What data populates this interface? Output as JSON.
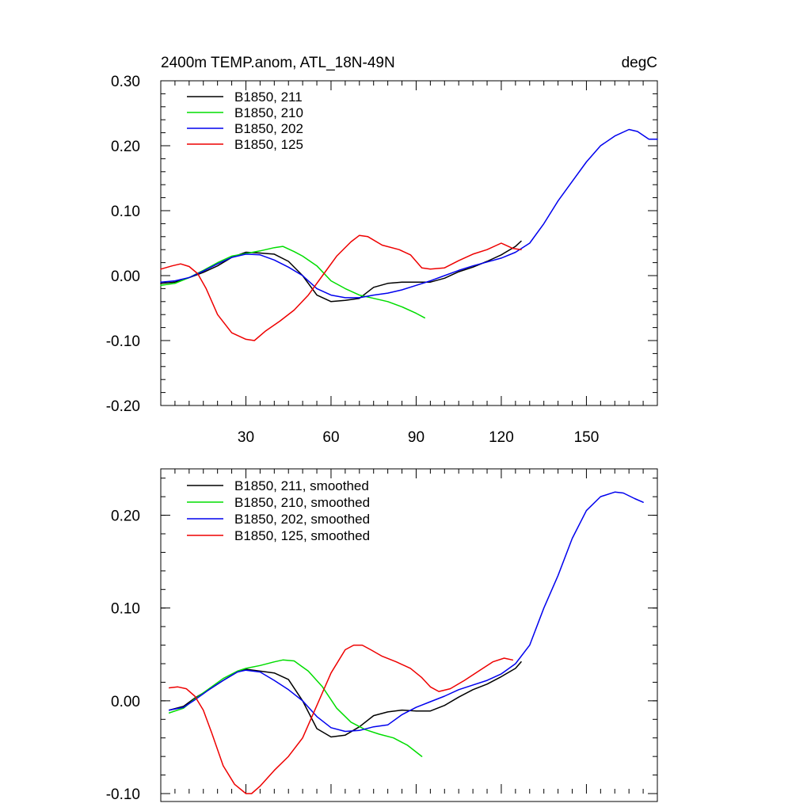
{
  "chart_data": [
    {
      "type": "line",
      "title_left": "2400m TEMP.anom, ATL_18N-49N",
      "title_right": "degC",
      "xlabel": "",
      "ylabel": "",
      "xlim": [
        0,
        175
      ],
      "ylim": [
        -0.2,
        0.3
      ],
      "x_ticks": [
        30,
        60,
        90,
        120,
        150
      ],
      "x_tick_labels": [
        "30",
        "60",
        "90",
        "120",
        "150"
      ],
      "y_ticks": [
        -0.2,
        -0.1,
        0.0,
        0.1,
        0.2,
        0.3
      ],
      "y_tick_labels": [
        "-0.20",
        "-0.10",
        "0.00",
        "0.10",
        "0.20",
        "0.30"
      ],
      "legend_position": "top-left",
      "series": [
        {
          "name": "B1850, 211",
          "color": "#000000",
          "x": [
            0,
            5,
            10,
            15,
            20,
            25,
            30,
            34,
            40,
            45,
            50,
            55,
            60,
            65,
            70,
            75,
            80,
            85,
            90,
            95,
            100,
            105,
            110,
            115,
            120,
            125,
            127
          ],
          "y": [
            -0.012,
            -0.01,
            -0.003,
            0.005,
            0.015,
            0.028,
            0.036,
            0.035,
            0.033,
            0.022,
            0.0,
            -0.03,
            -0.04,
            -0.038,
            -0.035,
            -0.018,
            -0.012,
            -0.01,
            -0.01,
            -0.01,
            -0.004,
            0.006,
            0.013,
            0.022,
            0.032,
            0.045,
            0.053
          ]
        },
        {
          "name": "B1850, 210",
          "color": "#00dd00",
          "x": [
            0,
            5,
            10,
            15,
            20,
            25,
            30,
            35,
            40,
            43,
            47,
            50,
            55,
            60,
            65,
            70,
            75,
            80,
            85,
            90,
            93
          ],
          "y": [
            -0.015,
            -0.012,
            -0.003,
            0.008,
            0.02,
            0.03,
            0.034,
            0.038,
            0.043,
            0.045,
            0.037,
            0.03,
            0.015,
            -0.008,
            -0.02,
            -0.03,
            -0.035,
            -0.04,
            -0.048,
            -0.058,
            -0.065
          ]
        },
        {
          "name": "B1850, 202",
          "color": "#0000ee",
          "x": [
            0,
            5,
            10,
            15,
            20,
            25,
            30,
            35,
            40,
            45,
            50,
            55,
            60,
            65,
            70,
            75,
            80,
            85,
            90,
            95,
            100,
            105,
            110,
            115,
            120,
            125,
            130,
            135,
            140,
            145,
            150,
            155,
            160,
            165,
            168,
            172,
            175
          ],
          "y": [
            -0.01,
            -0.008,
            -0.003,
            0.007,
            0.018,
            0.028,
            0.033,
            0.032,
            0.024,
            0.013,
            0.0,
            -0.02,
            -0.03,
            -0.034,
            -0.034,
            -0.03,
            -0.027,
            -0.022,
            -0.015,
            -0.008,
            0.0,
            0.008,
            0.015,
            0.021,
            0.027,
            0.036,
            0.05,
            0.08,
            0.115,
            0.145,
            0.175,
            0.2,
            0.215,
            0.225,
            0.222,
            0.21,
            0.21
          ]
        },
        {
          "name": "B1850, 125",
          "color": "#ee0000",
          "x": [
            0,
            4,
            7,
            10,
            13,
            16,
            20,
            25,
            30,
            33,
            37,
            42,
            47,
            52,
            57,
            62,
            67,
            70,
            73,
            78,
            84,
            88,
            92,
            95,
            100,
            105,
            110,
            115,
            120,
            124,
            127
          ],
          "y": [
            0.01,
            0.015,
            0.018,
            0.014,
            0.003,
            -0.02,
            -0.06,
            -0.088,
            -0.098,
            -0.1,
            -0.085,
            -0.07,
            -0.053,
            -0.03,
            0.0,
            0.03,
            0.052,
            0.062,
            0.06,
            0.047,
            0.04,
            0.032,
            0.012,
            0.01,
            0.012,
            0.023,
            0.033,
            0.04,
            0.05,
            0.042,
            0.04
          ]
        }
      ]
    },
    {
      "type": "line",
      "title_left": "",
      "title_right": "",
      "xlabel": "",
      "ylabel": "",
      "xlim": [
        0,
        175
      ],
      "ylim": [
        -0.1,
        0.25
      ],
      "x_ticks": [
        30,
        60,
        90,
        120,
        150
      ],
      "x_tick_labels": [],
      "y_ticks": [
        -0.1,
        0.0,
        0.1,
        0.2
      ],
      "y_tick_labels": [
        "-0.10",
        "0.00",
        "0.10",
        "0.20"
      ],
      "legend_position": "top-left",
      "series": [
        {
          "name": "B1850, 211, smoothed",
          "color": "#000000",
          "x": [
            3,
            8,
            12,
            17,
            22,
            27,
            30,
            35,
            40,
            45,
            50,
            55,
            60,
            65,
            70,
            75,
            80,
            85,
            90,
            95,
            100,
            105,
            110,
            115,
            120,
            125,
            127
          ],
          "y": [
            -0.01,
            -0.006,
            0.003,
            0.012,
            0.022,
            0.031,
            0.034,
            0.032,
            0.03,
            0.023,
            0.0,
            -0.03,
            -0.039,
            -0.037,
            -0.028,
            -0.016,
            -0.012,
            -0.01,
            -0.011,
            -0.011,
            -0.005,
            0.004,
            0.012,
            0.018,
            0.026,
            0.035,
            0.042
          ]
        },
        {
          "name": "B1850, 210, smoothed",
          "color": "#00dd00",
          "x": [
            3,
            8,
            12,
            17,
            22,
            27,
            30,
            35,
            40,
            43,
            47,
            52,
            57,
            62,
            67,
            72,
            77,
            82,
            87,
            92
          ],
          "y": [
            -0.013,
            -0.008,
            0.002,
            0.013,
            0.024,
            0.032,
            0.035,
            0.038,
            0.042,
            0.044,
            0.043,
            0.032,
            0.015,
            -0.008,
            -0.023,
            -0.031,
            -0.036,
            -0.04,
            -0.048,
            -0.06
          ]
        },
        {
          "name": "B1850, 202, smoothed",
          "color": "#0000ee",
          "x": [
            3,
            8,
            12,
            17,
            22,
            27,
            30,
            35,
            40,
            45,
            50,
            55,
            60,
            65,
            70,
            75,
            80,
            85,
            90,
            95,
            100,
            105,
            110,
            115,
            120,
            125,
            130,
            135,
            140,
            145,
            150,
            155,
            160,
            163,
            167,
            170
          ],
          "y": [
            -0.01,
            -0.007,
            0.001,
            0.012,
            0.022,
            0.031,
            0.033,
            0.031,
            0.022,
            0.012,
            0.0,
            -0.017,
            -0.029,
            -0.033,
            -0.032,
            -0.028,
            -0.026,
            -0.015,
            -0.007,
            -0.001,
            0.005,
            0.012,
            0.017,
            0.022,
            0.029,
            0.04,
            0.06,
            0.1,
            0.135,
            0.175,
            0.205,
            0.22,
            0.225,
            0.224,
            0.218,
            0.214
          ]
        },
        {
          "name": "B1850, 125, smoothed",
          "color": "#ee0000",
          "x": [
            3,
            6,
            9,
            12,
            15,
            18,
            22,
            26,
            30,
            32,
            35,
            40,
            45,
            50,
            55,
            60,
            65,
            68,
            71,
            74,
            78,
            83,
            88,
            92,
            95,
            98,
            102,
            107,
            112,
            117,
            121,
            124
          ],
          "y": [
            0.014,
            0.015,
            0.013,
            0.005,
            -0.01,
            -0.035,
            -0.07,
            -0.09,
            -0.1,
            -0.1,
            -0.092,
            -0.075,
            -0.06,
            -0.04,
            -0.005,
            0.03,
            0.055,
            0.06,
            0.06,
            0.055,
            0.048,
            0.042,
            0.035,
            0.025,
            0.015,
            0.01,
            0.013,
            0.022,
            0.032,
            0.042,
            0.046,
            0.044
          ]
        }
      ]
    }
  ]
}
